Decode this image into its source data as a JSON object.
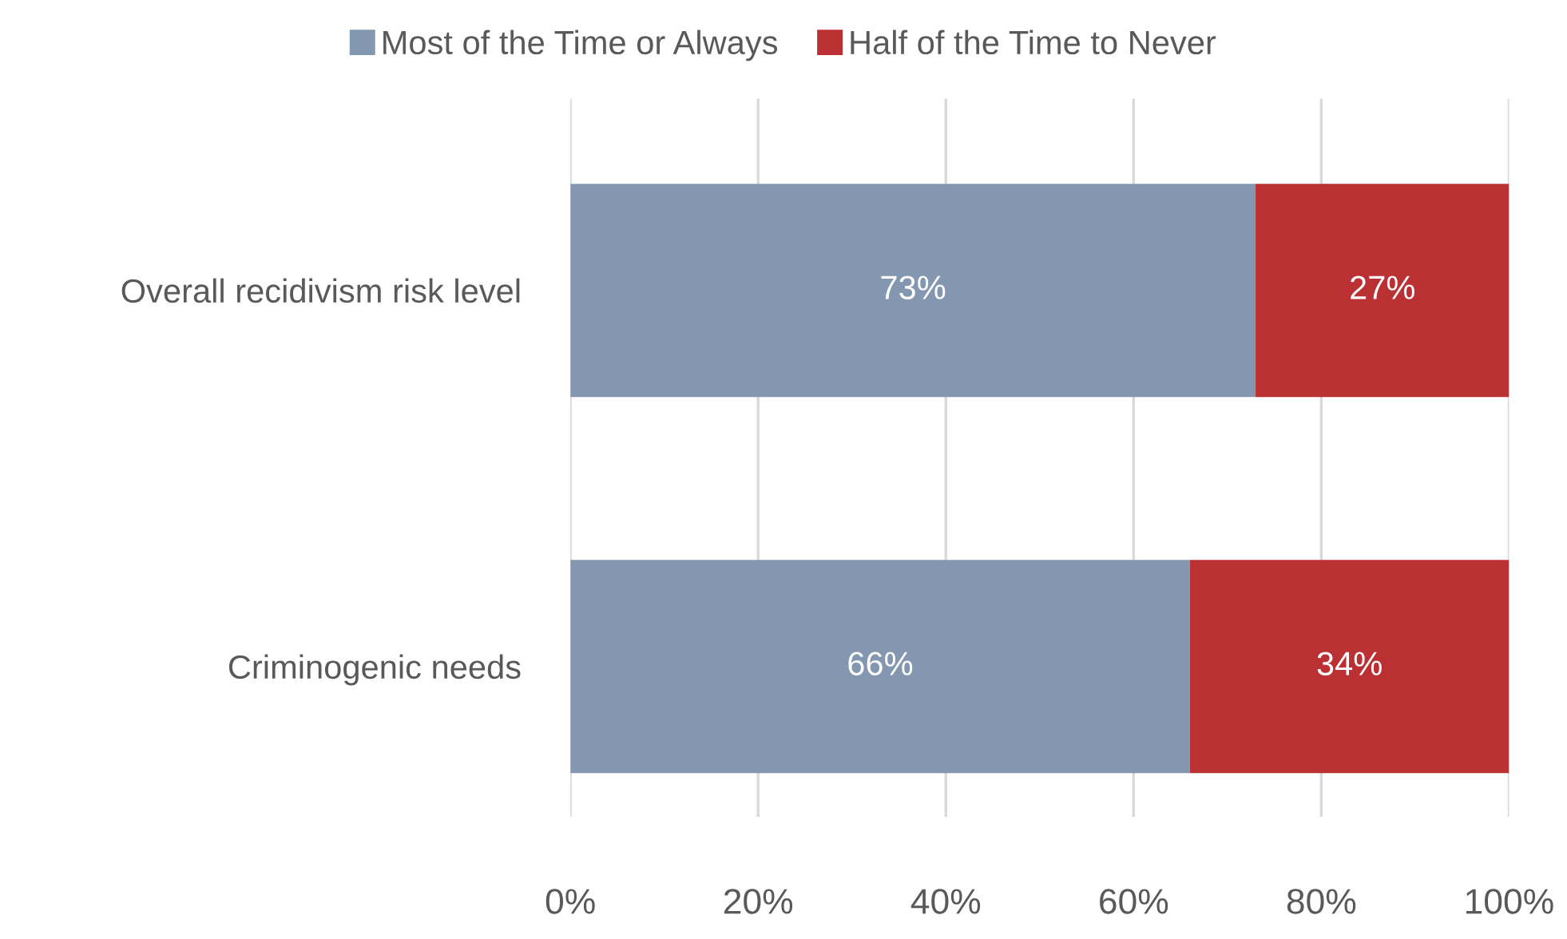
{
  "chart_data": {
    "type": "bar",
    "orientation": "horizontal",
    "stacked": true,
    "categories": [
      "Overall recidivism risk level",
      "Criminogenic needs"
    ],
    "series": [
      {
        "name": "Most of the Time or Always",
        "color": "#8497b0",
        "values": [
          73,
          66
        ],
        "value_labels": [
          "73%",
          "66%"
        ]
      },
      {
        "name": "Half of the Time to Never",
        "color": "#bb3033",
        "values": [
          27,
          34
        ],
        "value_labels": [
          "27%",
          "34%"
        ]
      }
    ],
    "xlim": [
      0,
      100
    ],
    "xticks": [
      {
        "value": 0,
        "label": "0%"
      },
      {
        "value": 20,
        "label": "20%"
      },
      {
        "value": 40,
        "label": "40%"
      },
      {
        "value": 60,
        "label": "60%"
      },
      {
        "value": 80,
        "label": "80%"
      },
      {
        "value": 100,
        "label": "100%"
      }
    ],
    "grid": "x",
    "legend": "top"
  }
}
